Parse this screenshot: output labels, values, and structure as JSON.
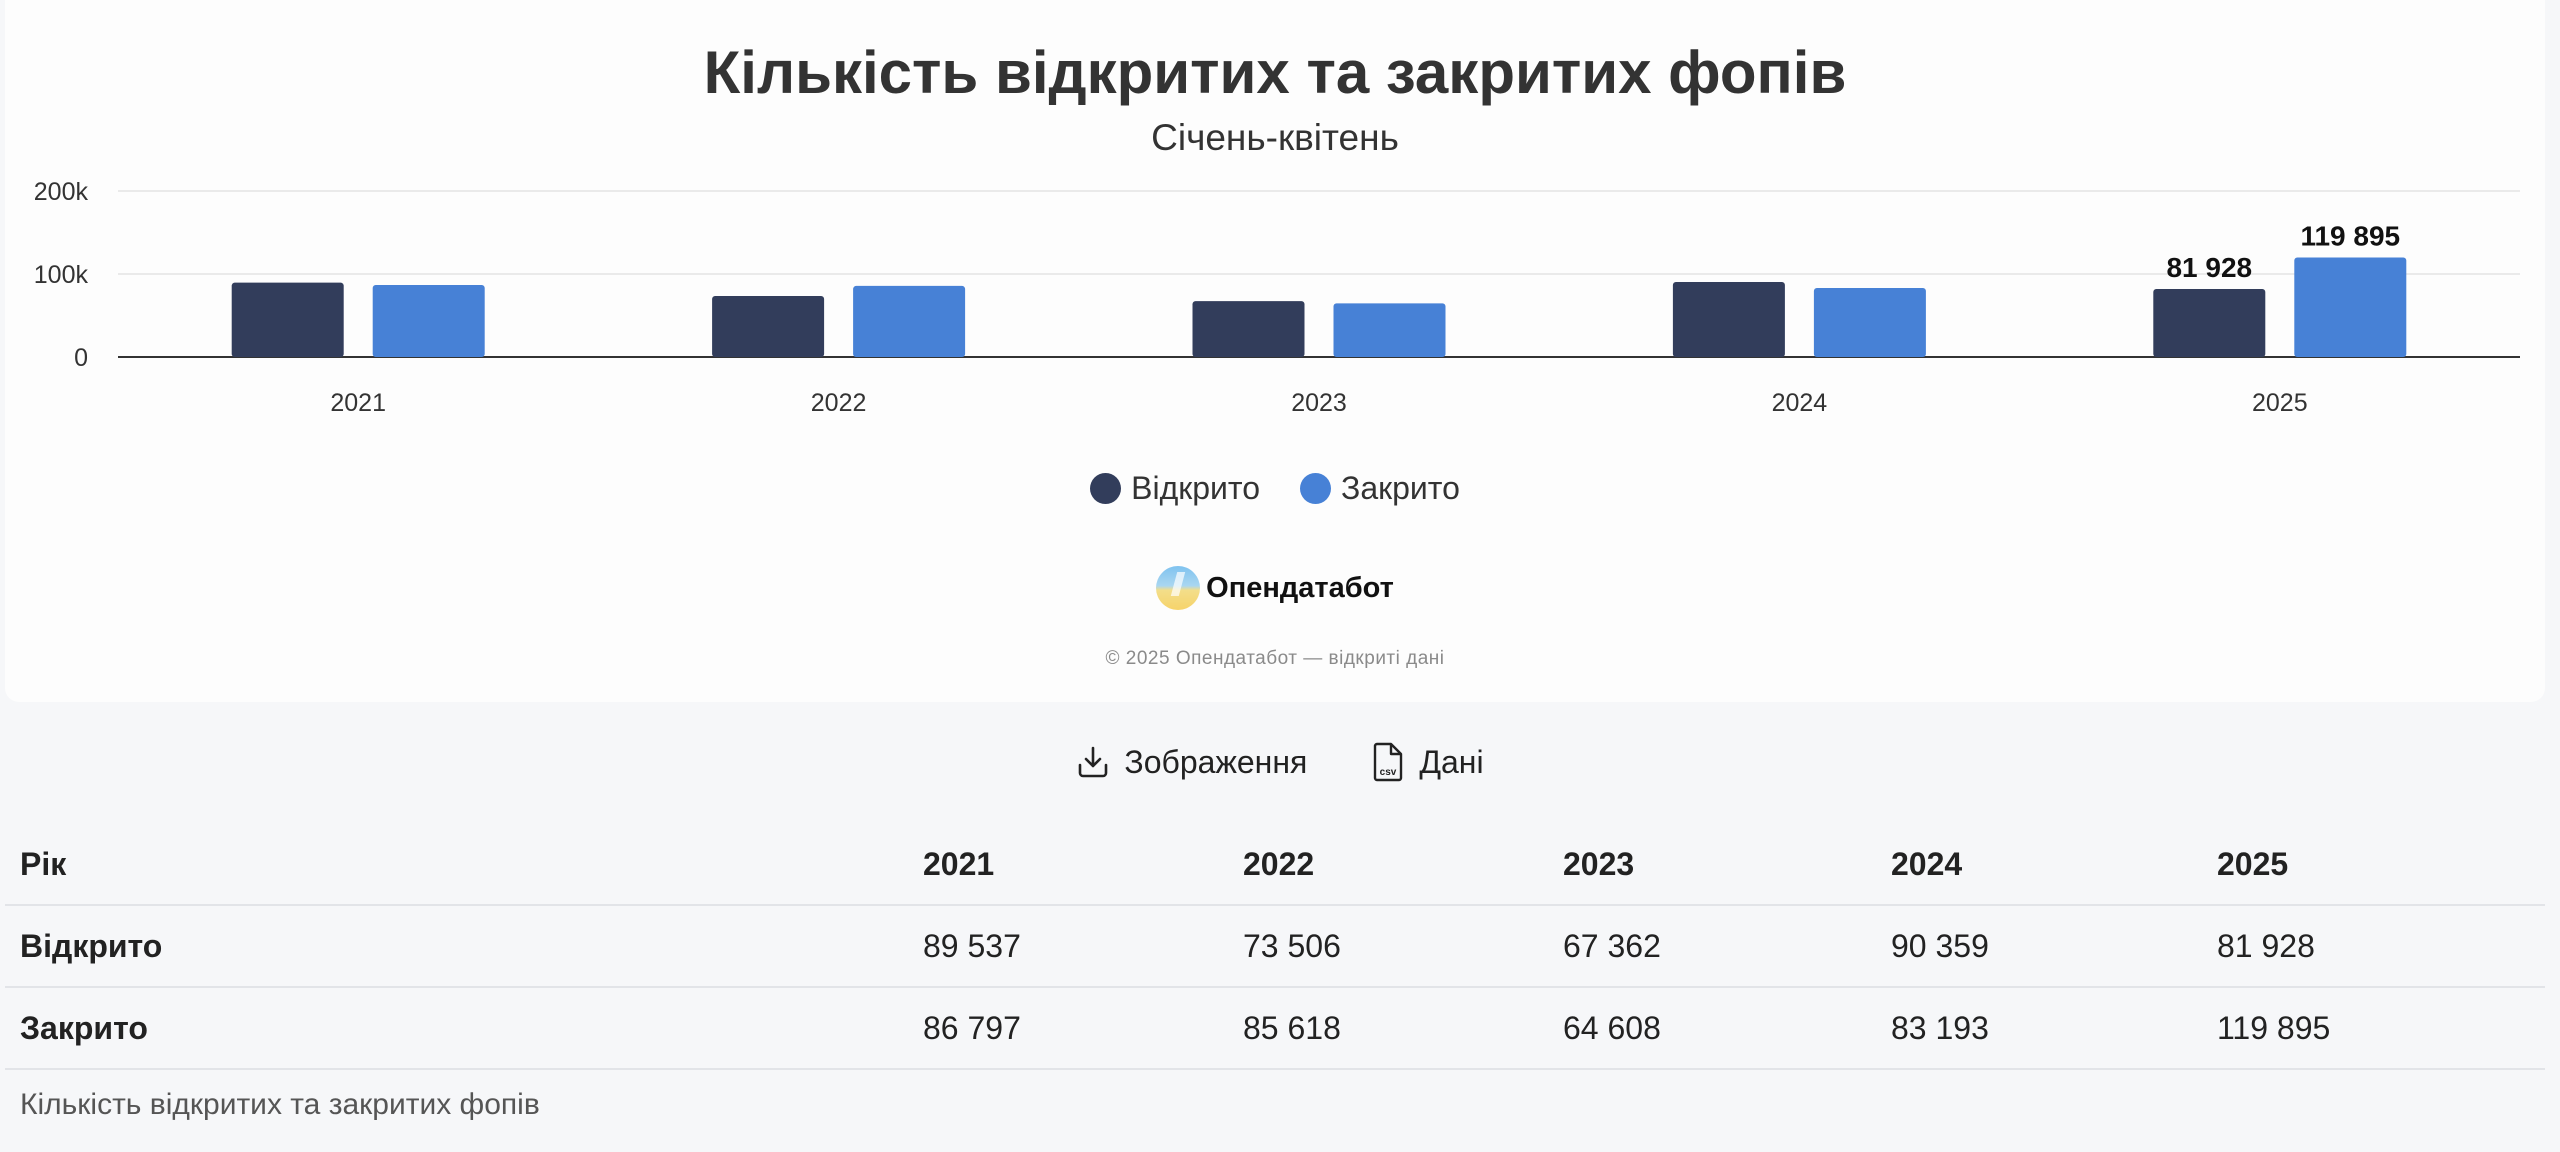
{
  "chart": {
    "title": "Кількість відкритих та закритих фопів",
    "subtitle": "Січень-квітень",
    "brand": "Опендатабот",
    "copyright": "© 2025 Опендатабот — відкриті дані"
  },
  "chart_data": {
    "type": "bar",
    "title": "Кількість відкритих та закритих фопів",
    "subtitle": "Січень-квітень",
    "categories": [
      "2021",
      "2022",
      "2023",
      "2024",
      "2025"
    ],
    "series": [
      {
        "name": "Відкрито",
        "values": [
          89537,
          73506,
          67362,
          90359,
          81928
        ],
        "color": "#323d5b"
      },
      {
        "name": "Закрито",
        "values": [
          86797,
          85618,
          64608,
          83193,
          119895
        ],
        "color": "#4781d6"
      }
    ],
    "ylim": [
      0,
      200000
    ],
    "yticks": [
      0,
      100000,
      200000
    ],
    "ytick_labels": [
      "0",
      "100k",
      "200k"
    ],
    "data_labels": [
      {
        "category": "2025",
        "series": "Відкрито",
        "text": "81 928"
      },
      {
        "category": "2025",
        "series": "Закрито",
        "text": "119 895"
      }
    ],
    "grid": true,
    "legend": "bottom-center"
  },
  "actions": {
    "image_label": "Зображення",
    "data_label": "Дані",
    "csv_tag": "csv"
  },
  "table": {
    "header_label": "Рік",
    "years": [
      "2021",
      "2022",
      "2023",
      "2024",
      "2025"
    ],
    "rows": [
      {
        "label": "Відкрито",
        "values": [
          "89 537",
          "73 506",
          "67 362",
          "90 359",
          "81 928"
        ]
      },
      {
        "label": "Закрито",
        "values": [
          "86 797",
          "85 618",
          "64 608",
          "83 193",
          "119 895"
        ]
      }
    ],
    "caption": "Кількість відкритих та закритих фопів"
  }
}
